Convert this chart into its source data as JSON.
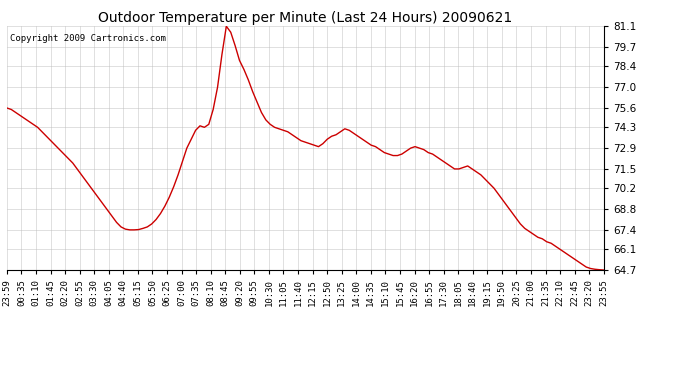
{
  "title": "Outdoor Temperature per Minute (Last 24 Hours) 20090621",
  "copyright": "Copyright 2009 Cartronics.com",
  "line_color": "#cc0000",
  "bg_color": "#ffffff",
  "plot_bg_color": "#ffffff",
  "grid_color": "#bbbbbb",
  "ylim": [
    64.7,
    81.1
  ],
  "yticks": [
    64.7,
    66.1,
    67.4,
    68.8,
    70.2,
    71.5,
    72.9,
    74.3,
    75.6,
    77.0,
    78.4,
    79.7,
    81.1
  ],
  "xtick_labels": [
    "23:59",
    "00:35",
    "01:10",
    "01:45",
    "02:20",
    "02:55",
    "03:30",
    "04:05",
    "04:40",
    "05:15",
    "05:50",
    "06:25",
    "07:00",
    "07:35",
    "08:10",
    "08:45",
    "09:20",
    "09:55",
    "10:30",
    "11:05",
    "11:40",
    "12:15",
    "12:50",
    "13:25",
    "14:00",
    "14:35",
    "15:10",
    "15:45",
    "16:20",
    "16:55",
    "17:30",
    "18:05",
    "18:40",
    "19:15",
    "19:50",
    "20:25",
    "21:00",
    "21:35",
    "22:10",
    "22:45",
    "23:20",
    "23:55"
  ],
  "temperature_data": [
    75.6,
    75.5,
    75.3,
    75.1,
    74.9,
    74.7,
    74.5,
    74.3,
    74.0,
    73.7,
    73.4,
    73.1,
    72.8,
    72.5,
    72.2,
    71.9,
    71.5,
    71.1,
    70.7,
    70.3,
    69.9,
    69.5,
    69.1,
    68.7,
    68.3,
    67.9,
    67.6,
    67.45,
    67.4,
    67.4,
    67.42,
    67.5,
    67.6,
    67.8,
    68.1,
    68.5,
    69.0,
    69.6,
    70.3,
    71.1,
    72.0,
    72.9,
    73.5,
    74.1,
    74.4,
    74.3,
    74.5,
    75.5,
    77.0,
    79.2,
    81.1,
    80.7,
    79.8,
    78.8,
    78.2,
    77.5,
    76.7,
    76.0,
    75.3,
    74.8,
    74.5,
    74.3,
    74.2,
    74.1,
    74.0,
    73.8,
    73.6,
    73.4,
    73.3,
    73.2,
    73.1,
    73.0,
    73.2,
    73.5,
    73.7,
    73.8,
    74.0,
    74.2,
    74.1,
    73.9,
    73.7,
    73.5,
    73.3,
    73.1,
    73.0,
    72.8,
    72.6,
    72.5,
    72.4,
    72.4,
    72.5,
    72.7,
    72.9,
    73.0,
    72.9,
    72.8,
    72.6,
    72.5,
    72.3,
    72.1,
    71.9,
    71.7,
    71.5,
    71.5,
    71.6,
    71.7,
    71.5,
    71.3,
    71.1,
    70.8,
    70.5,
    70.2,
    69.8,
    69.4,
    69.0,
    68.6,
    68.2,
    67.8,
    67.5,
    67.3,
    67.1,
    66.9,
    66.8,
    66.6,
    66.5,
    66.3,
    66.1,
    65.9,
    65.7,
    65.5,
    65.3,
    65.1,
    64.9,
    64.8,
    64.75,
    64.72,
    64.7
  ]
}
